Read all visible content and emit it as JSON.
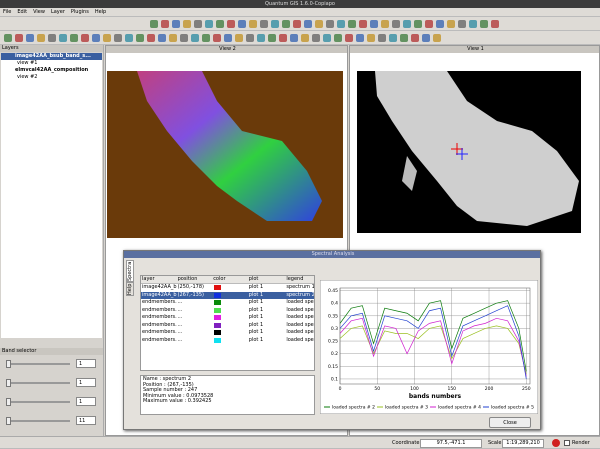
{
  "window": {
    "title": "Quantum GIS 1.6.0-Copiapo"
  },
  "menu": [
    "File",
    "Edit",
    "View",
    "Layer",
    "Plugins",
    "Help"
  ],
  "layers_panel": {
    "title": "Layers",
    "items": [
      {
        "name": "image42AA_bsub_band_s...",
        "sub": "view #1"
      },
      {
        "name": "elmvcal42AA_composition",
        "sub": "view #2"
      }
    ]
  },
  "band_selector": {
    "title": "Band selector",
    "spins": [
      "1",
      "1",
      "1",
      "11"
    ]
  },
  "views": [
    {
      "title": "View 2"
    },
    {
      "title": "View 1"
    }
  ],
  "dialog": {
    "title": "Spectral Analysis",
    "tabs": [
      "Spectra",
      "Help"
    ],
    "table": {
      "headers": [
        "layer",
        "position",
        "color",
        "plot",
        "legend"
      ],
      "rows": [
        [
          "image42AA_br...",
          "(250,-178)",
          "plot 1",
          "spectrum 1"
        ],
        [
          "image42AA_br...",
          "(267,-135)",
          "plot 1",
          "spectrum 2"
        ],
        [
          "endmembers...",
          "...",
          "plot 1",
          "loaded spec..."
        ],
        [
          "endmembers...",
          "...",
          "plot 1",
          "loaded spec..."
        ],
        [
          "endmembers...",
          "...",
          "plot 1",
          "loaded spec..."
        ],
        [
          "endmembers...",
          "...",
          "plot 1",
          "loaded spec..."
        ],
        [
          "endmembers...",
          "...",
          "plot 1",
          "loaded spec..."
        ],
        [
          "endmembers...",
          "...",
          "plot 1",
          "loaded spec..."
        ]
      ],
      "colors": [
        "#e01010",
        "#1030e0",
        "#0a8a0a",
        "#50e050",
        "#e020e0",
        "#8020c0",
        "#000000",
        "#10e0f0"
      ]
    },
    "info": [
      "Name : spectrum 2",
      "Position : (267,-135)",
      "Sample number : 247",
      "Minimum value : 0.0973528",
      "Maximum value : 0.392425"
    ],
    "close": "Close"
  },
  "chart_data": {
    "type": "line",
    "x_label": "bands numbers",
    "x": [
      0,
      15,
      30,
      45,
      60,
      75,
      90,
      105,
      120,
      135,
      150,
      165,
      180,
      195,
      210,
      225,
      240,
      250
    ],
    "series": [
      {
        "name": "loaded spectra # 2",
        "color": "#0a7a0a",
        "values": [
          0.32,
          0.38,
          0.39,
          0.24,
          0.38,
          0.37,
          0.36,
          0.33,
          0.4,
          0.41,
          0.22,
          0.34,
          0.36,
          0.38,
          0.4,
          0.41,
          0.3,
          0.13
        ]
      },
      {
        "name": "loaded spectra # 3",
        "color": "#9ac020",
        "values": [
          0.26,
          0.3,
          0.31,
          0.2,
          0.29,
          0.28,
          0.28,
          0.26,
          0.3,
          0.31,
          0.18,
          0.26,
          0.28,
          0.3,
          0.31,
          0.3,
          0.24,
          0.12
        ]
      },
      {
        "name": "loaded spectra # 4",
        "color": "#d020d0",
        "values": [
          0.28,
          0.33,
          0.34,
          0.19,
          0.31,
          0.3,
          0.2,
          0.29,
          0.32,
          0.33,
          0.16,
          0.29,
          0.31,
          0.32,
          0.34,
          0.33,
          0.25,
          0.11
        ]
      },
      {
        "name": "loaded spectra # 5",
        "color": "#2040d0",
        "values": [
          0.3,
          0.35,
          0.36,
          0.21,
          0.35,
          0.34,
          0.33,
          0.3,
          0.37,
          0.38,
          0.19,
          0.31,
          0.33,
          0.35,
          0.37,
          0.39,
          0.27,
          0.1
        ]
      }
    ],
    "xlim": [
      0,
      255
    ],
    "xticks": [
      0,
      50,
      100,
      150,
      200,
      250
    ],
    "ylim": [
      0.08,
      0.46
    ],
    "yticks": [
      0.1,
      0.15,
      0.2,
      0.25,
      0.3,
      0.35,
      0.4,
      0.45
    ],
    "grid": true
  },
  "status": {
    "coordinate_label": "Coordinate:",
    "coordinate": "97.5,-471.1",
    "scale_label": "Scale",
    "scale": "1:19,289,210",
    "render": "Render"
  }
}
